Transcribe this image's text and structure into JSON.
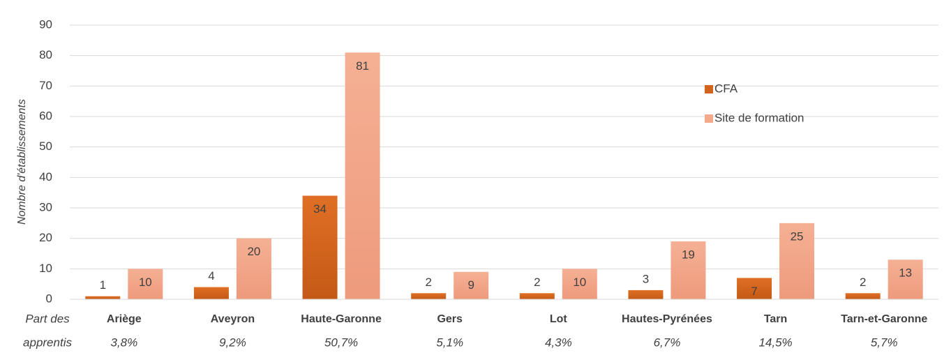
{
  "chart_data": {
    "type": "bar",
    "y_label": "Nombre d'établissements",
    "categories": [
      "Ariège",
      "Aveyron",
      "Haute-Garonne",
      "Gers",
      "Lot",
      "Hautes-Pyrénées",
      "Tarn",
      "Tarn-et-Garonne"
    ],
    "series": [
      {
        "name": "CFA",
        "color": "#d2641e",
        "values": [
          1,
          4,
          34,
          2,
          2,
          3,
          7,
          2
        ]
      },
      {
        "name": "Site de formation",
        "color": "#f4a98b",
        "values": [
          10,
          20,
          81,
          9,
          10,
          19,
          25,
          13
        ]
      }
    ],
    "ylim": [
      0,
      90
    ],
    "yticks": [
      0,
      10,
      20,
      30,
      40,
      50,
      60,
      70,
      80,
      90
    ],
    "grid": true,
    "share_title": [
      "Part des",
      "apprentis"
    ],
    "shares": [
      "3,8%",
      "9,2%",
      "50,7%",
      "5,1%",
      "4,3%",
      "6,7%",
      "14,5%",
      "5,7%"
    ],
    "legend": "right"
  }
}
